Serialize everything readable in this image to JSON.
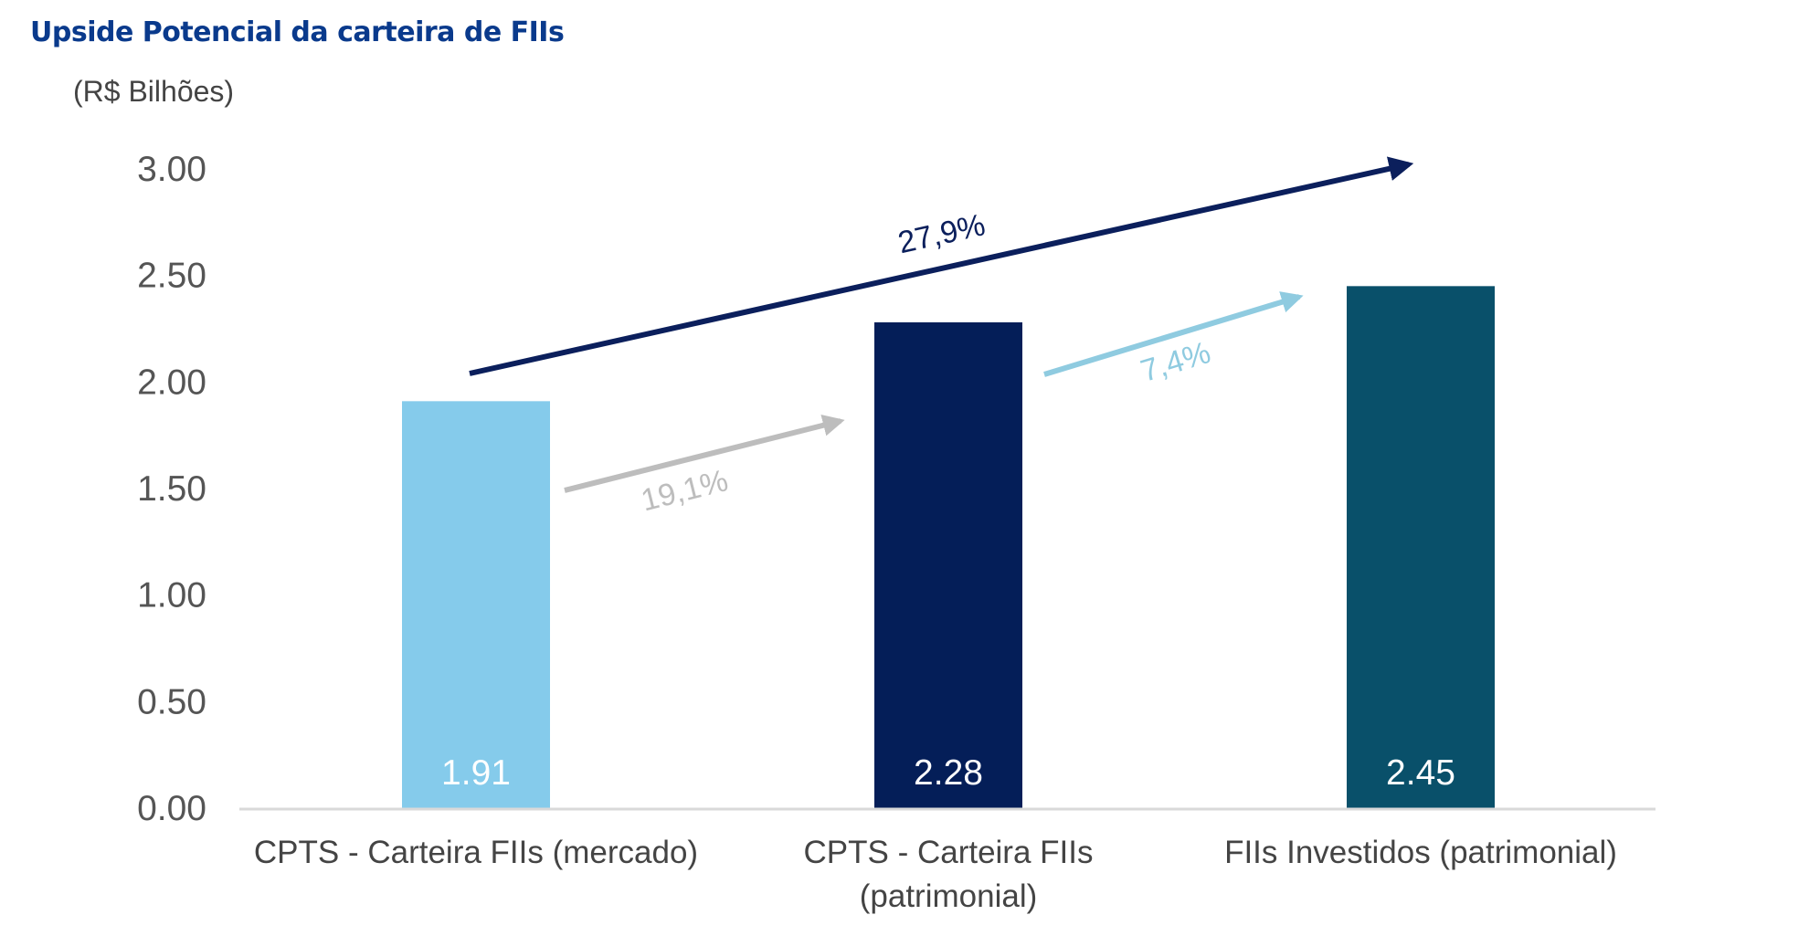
{
  "chart_data": {
    "type": "bar",
    "title": "Upside Potencial da carteira de FIIs",
    "ylabel": "(R$ Bilhões)",
    "ylim": [
      0,
      3
    ],
    "yticks": [
      "0.00",
      "0.50",
      "1.00",
      "1.50",
      "2.00",
      "2.50",
      "3.00"
    ],
    "grid": false,
    "categories": [
      [
        "CPTS - Carteira FIIs (mercado)"
      ],
      [
        "CPTS - Carteira FIIs",
        "(patrimonial)"
      ],
      [
        "FIIs Investidos (patrimonial)"
      ]
    ],
    "values": [
      1.91,
      2.28,
      2.45
    ],
    "value_labels": [
      "1.91",
      "2.28",
      "2.45"
    ],
    "bar_colors": [
      "#85cbeb",
      "#041e58",
      "#09506a"
    ],
    "annotations": [
      {
        "text": "19,1%",
        "from_category": 0,
        "to_category": 1,
        "color": "#bdbdbd"
      },
      {
        "text": "7,4%",
        "from_category": 1,
        "to_category": 2,
        "color": "#8fcbe0"
      },
      {
        "text": "27,9%",
        "from_category": 0,
        "to_category": 2,
        "color": "#0b1f5c"
      }
    ]
  }
}
